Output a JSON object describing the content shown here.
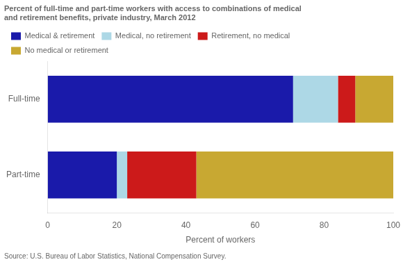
{
  "chart_data": {
    "type": "bar",
    "orientation": "horizontal",
    "stacked": true,
    "title": [
      "Percent of full-time and part-time workers with access to combinations of medical",
      "and retirement benefits, private industry, March 2012"
    ],
    "categories": [
      "Full-time",
      "Part-time"
    ],
    "series": [
      {
        "name": "Medical & retirement",
        "values": [
          71,
          20
        ],
        "color": "#1a1aaa"
      },
      {
        "name": "Medical, no retirement",
        "values": [
          13,
          3
        ],
        "color": "#add8e6"
      },
      {
        "name": "Retirement, no medical",
        "values": [
          5,
          20
        ],
        "color": "#cc1a1a"
      },
      {
        "name": "No medical or retirement",
        "values": [
          11,
          57
        ],
        "color": "#c8a832"
      }
    ],
    "xlabel": "Percent of workers",
    "xlim": [
      0,
      100
    ],
    "xticks": [
      0,
      20,
      40,
      60,
      80,
      100
    ],
    "annotations": [
      "Source: U.S. Bureau of Labor Statistics, National Compensation Survey."
    ],
    "legend": "top",
    "grid": false
  }
}
